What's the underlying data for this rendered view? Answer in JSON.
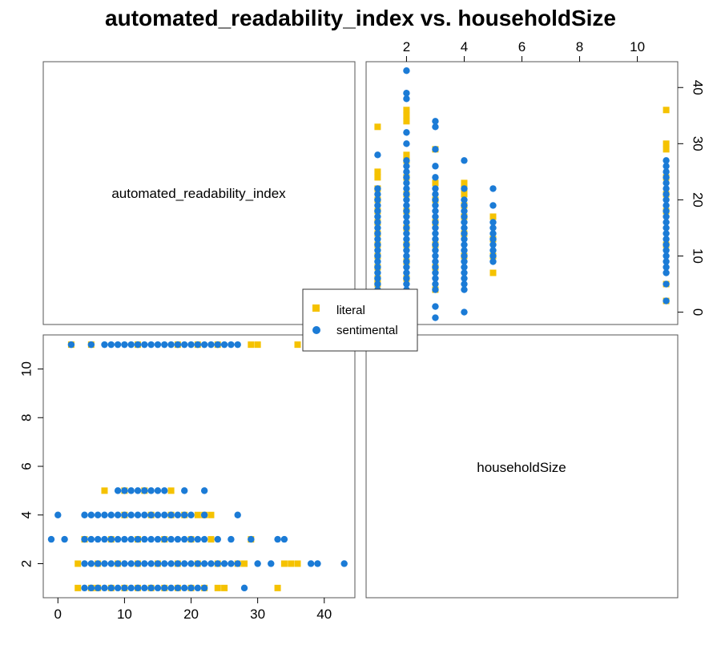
{
  "chart_data": {
    "type": "scatter",
    "title": "automated_readability_index vs. householdSize",
    "variables": [
      "automated_readability_index",
      "householdSize"
    ],
    "axes": {
      "automated_readability_index": {
        "range": [
          -2.2,
          44.6
        ],
        "ticks": [
          0,
          10,
          20,
          30,
          40
        ]
      },
      "householdSize": {
        "range": [
          0.6,
          11.4
        ],
        "ticks": [
          2,
          4,
          6,
          8,
          10
        ]
      }
    },
    "legend": {
      "position": "center",
      "entries": [
        "literal",
        "sentimental"
      ]
    },
    "colors": {
      "literal": "#F5C200",
      "sentimental": "#1B7BD6"
    },
    "series": [
      {
        "name": "literal",
        "marker": "square",
        "points": [
          [
            1,
            3
          ],
          [
            1,
            5
          ],
          [
            1,
            6
          ],
          [
            1,
            8
          ],
          [
            1,
            10
          ],
          [
            1,
            12
          ],
          [
            1,
            14
          ],
          [
            1,
            16
          ],
          [
            1,
            18
          ],
          [
            1,
            20
          ],
          [
            1,
            22
          ],
          [
            1,
            24
          ],
          [
            1,
            25
          ],
          [
            1,
            33
          ],
          [
            2,
            3
          ],
          [
            2,
            6
          ],
          [
            2,
            9
          ],
          [
            2,
            12
          ],
          [
            2,
            15
          ],
          [
            2,
            18
          ],
          [
            2,
            21
          ],
          [
            2,
            24
          ],
          [
            2,
            27
          ],
          [
            2,
            28
          ],
          [
            2,
            34
          ],
          [
            2,
            35
          ],
          [
            2,
            36
          ],
          [
            3,
            4
          ],
          [
            3,
            8
          ],
          [
            3,
            12
          ],
          [
            3,
            16
          ],
          [
            3,
            20
          ],
          [
            3,
            23
          ],
          [
            3,
            29
          ],
          [
            4,
            10
          ],
          [
            4,
            14
          ],
          [
            4,
            17
          ],
          [
            4,
            19
          ],
          [
            4,
            21
          ],
          [
            4,
            22
          ],
          [
            4,
            23
          ],
          [
            5,
            7
          ],
          [
            5,
            10
          ],
          [
            5,
            13
          ],
          [
            5,
            17
          ],
          [
            11,
            2
          ],
          [
            11,
            5
          ],
          [
            11,
            12
          ],
          [
            11,
            18
          ],
          [
            11,
            21
          ],
          [
            11,
            24
          ],
          [
            11,
            29
          ],
          [
            11,
            30
          ],
          [
            11,
            36
          ]
        ]
      },
      {
        "name": "sentimental",
        "marker": "circle",
        "points": [
          [
            1,
            4
          ],
          [
            1,
            5
          ],
          [
            1,
            6
          ],
          [
            1,
            7
          ],
          [
            1,
            8
          ],
          [
            1,
            9
          ],
          [
            1,
            10
          ],
          [
            1,
            11
          ],
          [
            1,
            12
          ],
          [
            1,
            13
          ],
          [
            1,
            14
          ],
          [
            1,
            15
          ],
          [
            1,
            16
          ],
          [
            1,
            17
          ],
          [
            1,
            18
          ],
          [
            1,
            19
          ],
          [
            1,
            20
          ],
          [
            1,
            21
          ],
          [
            1,
            22
          ],
          [
            1,
            28
          ],
          [
            2,
            4
          ],
          [
            2,
            5
          ],
          [
            2,
            6
          ],
          [
            2,
            7
          ],
          [
            2,
            8
          ],
          [
            2,
            9
          ],
          [
            2,
            10
          ],
          [
            2,
            11
          ],
          [
            2,
            12
          ],
          [
            2,
            13
          ],
          [
            2,
            14
          ],
          [
            2,
            15
          ],
          [
            2,
            16
          ],
          [
            2,
            17
          ],
          [
            2,
            18
          ],
          [
            2,
            19
          ],
          [
            2,
            20
          ],
          [
            2,
            21
          ],
          [
            2,
            22
          ],
          [
            2,
            23
          ],
          [
            2,
            24
          ],
          [
            2,
            25
          ],
          [
            2,
            26
          ],
          [
            2,
            27
          ],
          [
            2,
            30
          ],
          [
            2,
            32
          ],
          [
            2,
            38
          ],
          [
            2,
            39
          ],
          [
            2,
            43
          ],
          [
            3,
            -1
          ],
          [
            3,
            1
          ],
          [
            3,
            4
          ],
          [
            3,
            5
          ],
          [
            3,
            6
          ],
          [
            3,
            7
          ],
          [
            3,
            8
          ],
          [
            3,
            9
          ],
          [
            3,
            10
          ],
          [
            3,
            11
          ],
          [
            3,
            12
          ],
          [
            3,
            13
          ],
          [
            3,
            14
          ],
          [
            3,
            15
          ],
          [
            3,
            16
          ],
          [
            3,
            17
          ],
          [
            3,
            18
          ],
          [
            3,
            19
          ],
          [
            3,
            20
          ],
          [
            3,
            21
          ],
          [
            3,
            22
          ],
          [
            3,
            24
          ],
          [
            3,
            26
          ],
          [
            3,
            29
          ],
          [
            3,
            33
          ],
          [
            3,
            34
          ],
          [
            4,
            0
          ],
          [
            4,
            4
          ],
          [
            4,
            5
          ],
          [
            4,
            6
          ],
          [
            4,
            7
          ],
          [
            4,
            8
          ],
          [
            4,
            9
          ],
          [
            4,
            10
          ],
          [
            4,
            11
          ],
          [
            4,
            12
          ],
          [
            4,
            13
          ],
          [
            4,
            14
          ],
          [
            4,
            15
          ],
          [
            4,
            16
          ],
          [
            4,
            17
          ],
          [
            4,
            18
          ],
          [
            4,
            19
          ],
          [
            4,
            20
          ],
          [
            4,
            22
          ],
          [
            4,
            27
          ],
          [
            5,
            9
          ],
          [
            5,
            10
          ],
          [
            5,
            11
          ],
          [
            5,
            12
          ],
          [
            5,
            13
          ],
          [
            5,
            14
          ],
          [
            5,
            15
          ],
          [
            5,
            16
          ],
          [
            5,
            19
          ],
          [
            5,
            22
          ],
          [
            11,
            2
          ],
          [
            11,
            5
          ],
          [
            11,
            7
          ],
          [
            11,
            8
          ],
          [
            11,
            9
          ],
          [
            11,
            10
          ],
          [
            11,
            11
          ],
          [
            11,
            12
          ],
          [
            11,
            13
          ],
          [
            11,
            14
          ],
          [
            11,
            15
          ],
          [
            11,
            16
          ],
          [
            11,
            17
          ],
          [
            11,
            18
          ],
          [
            11,
            19
          ],
          [
            11,
            20
          ],
          [
            11,
            21
          ],
          [
            11,
            22
          ],
          [
            11,
            23
          ],
          [
            11,
            24
          ],
          [
            11,
            25
          ],
          [
            11,
            26
          ],
          [
            11,
            27
          ]
        ]
      }
    ]
  }
}
